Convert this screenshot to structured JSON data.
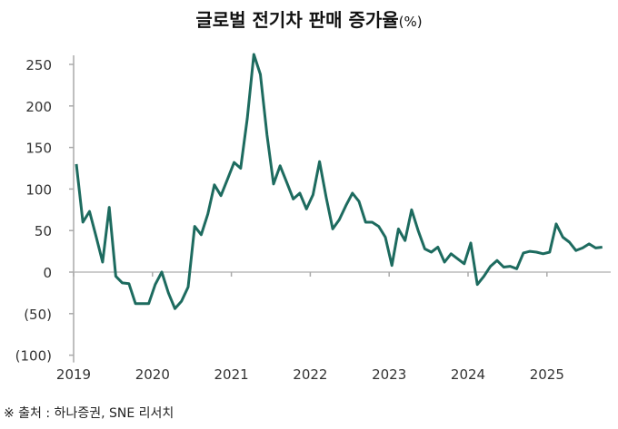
{
  "chart_data": {
    "type": "line",
    "title": "글로벌 전기차 판매 증가율",
    "unit": "(%)",
    "source": "※ 출처 : 하나증권, SNE 리서치",
    "xlabel": "",
    "ylabel": "",
    "ylim": [
      -100,
      250
    ],
    "yticks": [
      250,
      200,
      150,
      100,
      50,
      0,
      -50,
      -100
    ],
    "ytick_labels": [
      "250",
      "200",
      "150",
      "100",
      "50",
      "0",
      "(50)",
      "(100)"
    ],
    "xticks": [
      "2019",
      "2020",
      "2021",
      "2022",
      "2023",
      "2024",
      "2025"
    ],
    "start": "2019-01",
    "frequency": "monthly",
    "grid": false,
    "color": "#1d6b5f",
    "series": [
      {
        "name": "글로벌 전기차 판매 증가율",
        "values": [
          130,
          60,
          73,
          43,
          12,
          78,
          -5,
          -13,
          -14,
          -38,
          -38,
          -38,
          -15,
          0,
          -25,
          -44,
          -35,
          -18,
          55,
          45,
          70,
          105,
          92,
          112,
          132,
          125,
          185,
          262,
          238,
          165,
          106,
          128,
          108,
          88,
          95,
          76,
          93,
          133,
          90,
          52,
          63,
          80,
          95,
          85,
          60,
          60,
          55,
          42,
          8,
          52,
          38,
          75,
          50,
          28,
          24,
          30,
          12,
          22,
          16,
          10,
          35,
          -15,
          -5,
          7,
          14,
          6,
          7,
          4,
          23,
          25,
          24,
          22,
          24,
          58,
          42,
          36,
          26,
          29,
          34,
          29,
          30
        ]
      }
    ]
  }
}
